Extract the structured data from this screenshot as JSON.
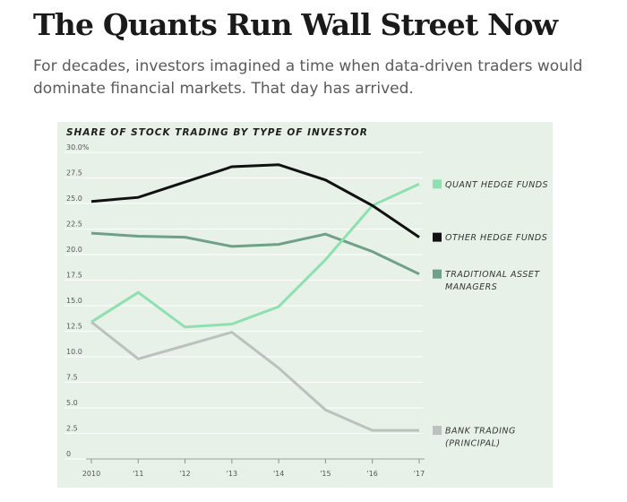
{
  "article": {
    "headline": "The Quants Run Wall Street Now",
    "dek": "For decades, investors imagined a time when data-driven traders would dominate financial markets. That day has arrived."
  },
  "chart_data": {
    "type": "line",
    "title": "SHARE OF STOCK TRADING BY TYPE OF INVESTOR",
    "xlabel": "",
    "ylabel": "",
    "x": [
      "2010",
      "'11",
      "'12",
      "'13",
      "'14",
      "'15",
      "'16",
      "'17"
    ],
    "ylim": [
      0,
      30
    ],
    "yticks": [
      {
        "value": 30,
        "label": "30.0%"
      },
      {
        "value": 27.5,
        "label": "27.5"
      },
      {
        "value": 25,
        "label": "25.0"
      },
      {
        "value": 22.5,
        "label": "22.5"
      },
      {
        "value": 20,
        "label": "20.0"
      },
      {
        "value": 17.5,
        "label": "17.5"
      },
      {
        "value": 15,
        "label": "15.0"
      },
      {
        "value": 12.5,
        "label": "12.5"
      },
      {
        "value": 10,
        "label": "10.0"
      },
      {
        "value": 7.5,
        "label": "7.5"
      },
      {
        "value": 5,
        "label": "5.0"
      },
      {
        "value": 2.5,
        "label": "2.5"
      },
      {
        "value": 0,
        "label": "0"
      }
    ],
    "series": [
      {
        "name": "Quant hedge funds",
        "legend": [
          "QUANT HEDGE FUNDS"
        ],
        "color": "#8ee0b0",
        "values": [
          13.4,
          16.3,
          12.9,
          13.2,
          14.9,
          19.5,
          24.8,
          26.9
        ]
      },
      {
        "name": "Other hedge funds",
        "legend": [
          "OTHER HEDGE FUNDS"
        ],
        "color": "#111111",
        "values": [
          25.2,
          25.6,
          27.1,
          28.6,
          28.8,
          27.3,
          24.8,
          21.7
        ]
      },
      {
        "name": "Traditional asset managers",
        "legend": [
          "TRADITIONAL ASSET",
          "MANAGERS"
        ],
        "color": "#6fa088",
        "values": [
          22.1,
          21.8,
          21.7,
          20.8,
          21.0,
          22.0,
          20.3,
          18.1
        ]
      },
      {
        "name": "Bank trading (principal)",
        "legend": [
          "BANK TRADING",
          "(PRINCIPAL)"
        ],
        "color": "#bcc1bd",
        "values": [
          13.4,
          9.8,
          11.1,
          12.4,
          8.9,
          4.8,
          2.8,
          2.8
        ]
      }
    ]
  }
}
